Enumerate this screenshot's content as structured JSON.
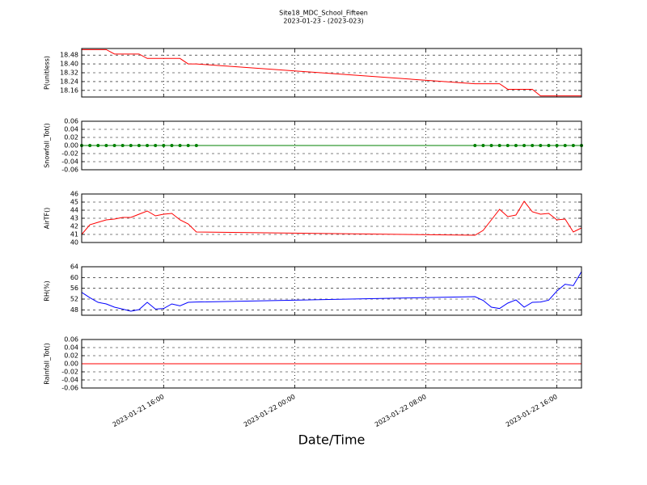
{
  "chart_data": [
    {
      "type": "line",
      "title": "Site18_MDC_School_Fifteen",
      "subtitle": "2023-01-23 - (2023-023)",
      "ylabel": "P(unitless)",
      "x": [
        "2023-01-21 11:00",
        "2023-01-21 11:30",
        "2023-01-21 12:00",
        "2023-01-21 12:30",
        "2023-01-21 13:00",
        "2023-01-21 13:30",
        "2023-01-21 14:00",
        "2023-01-21 14:30",
        "2023-01-21 15:00",
        "2023-01-21 15:30",
        "2023-01-21 16:00",
        "2023-01-21 16:30",
        "2023-01-21 17:00",
        "2023-01-21 17:30",
        "2023-01-21 18:00",
        "2023-01-22 11:00",
        "2023-01-22 11:30",
        "2023-01-22 12:00",
        "2023-01-22 12:30",
        "2023-01-22 13:00",
        "2023-01-22 13:30",
        "2023-01-22 14:00",
        "2023-01-22 14:30",
        "2023-01-22 15:00",
        "2023-01-22 15:30",
        "2023-01-22 16:00",
        "2023-01-22 16:30",
        "2023-01-22 17:00",
        "2023-01-22 17:30"
      ],
      "values": [
        18.53,
        18.53,
        18.53,
        18.53,
        18.49,
        18.49,
        18.49,
        18.49,
        18.45,
        18.45,
        18.45,
        18.45,
        18.45,
        18.4,
        18.4,
        18.22,
        18.22,
        18.22,
        18.22,
        18.17,
        18.17,
        18.17,
        18.17,
        18.11,
        18.11,
        18.11,
        18.11,
        18.11,
        18.11
      ],
      "color": "#ff0000",
      "markers": false,
      "xlim": [
        "2023-01-21 11:00",
        "2023-01-22 17:30"
      ],
      "ylim": [
        18.1,
        18.54
      ],
      "yticks": [
        18.16,
        18.24,
        18.32,
        {
          "value": 18.4,
          "label": "18.40"
        },
        18.48
      ],
      "grid": true
    },
    {
      "type": "line",
      "ylabel": "Snowfall_Tot()",
      "x": [
        "2023-01-21 11:00",
        "2023-01-21 11:30",
        "2023-01-21 12:00",
        "2023-01-21 12:30",
        "2023-01-21 13:00",
        "2023-01-21 13:30",
        "2023-01-21 14:00",
        "2023-01-21 14:30",
        "2023-01-21 15:00",
        "2023-01-21 15:30",
        "2023-01-21 16:00",
        "2023-01-21 16:30",
        "2023-01-21 17:00",
        "2023-01-21 17:30",
        "2023-01-21 18:00",
        "2023-01-22 11:00",
        "2023-01-22 11:30",
        "2023-01-22 12:00",
        "2023-01-22 12:30",
        "2023-01-22 13:00",
        "2023-01-22 13:30",
        "2023-01-22 14:00",
        "2023-01-22 14:30",
        "2023-01-22 15:00",
        "2023-01-22 15:30",
        "2023-01-22 16:00",
        "2023-01-22 16:30",
        "2023-01-22 17:00",
        "2023-01-22 17:30"
      ],
      "values": [
        0,
        0,
        0,
        0,
        0,
        0,
        0,
        0,
        0,
        0,
        0,
        0,
        0,
        0,
        0,
        0,
        0,
        0,
        0,
        0,
        0,
        0,
        0,
        0,
        0,
        0,
        0,
        0,
        0
      ],
      "color": "#008000",
      "markers": true,
      "xlim": [
        "2023-01-21 11:00",
        "2023-01-22 17:30"
      ],
      "ylim": [
        -0.06,
        0.06
      ],
      "yticks": [
        -0.06,
        -0.04,
        -0.02,
        {
          "value": 0,
          "label": "0.00"
        },
        0.02,
        0.04,
        0.06
      ],
      "grid": true
    },
    {
      "type": "line",
      "ylabel": "AirTF()",
      "x": [
        "2023-01-21 11:00",
        "2023-01-21 11:30",
        "2023-01-21 12:00",
        "2023-01-21 12:30",
        "2023-01-21 13:00",
        "2023-01-21 13:30",
        "2023-01-21 14:00",
        "2023-01-21 14:30",
        "2023-01-21 15:00",
        "2023-01-21 15:30",
        "2023-01-21 16:00",
        "2023-01-21 16:30",
        "2023-01-21 17:00",
        "2023-01-21 17:30",
        "2023-01-21 18:00",
        "2023-01-22 11:00",
        "2023-01-22 11:30",
        "2023-01-22 12:00",
        "2023-01-22 12:30",
        "2023-01-22 13:00",
        "2023-01-22 13:30",
        "2023-01-22 14:00",
        "2023-01-22 14:30",
        "2023-01-22 15:00",
        "2023-01-22 15:30",
        "2023-01-22 16:00",
        "2023-01-22 16:30",
        "2023-01-22 17:00",
        "2023-01-22 17:30"
      ],
      "values": [
        41.0,
        42.2,
        42.5,
        42.8,
        42.9,
        43.1,
        43.1,
        43.5,
        43.9,
        43.3,
        43.5,
        43.6,
        42.8,
        42.3,
        41.3,
        40.9,
        41.5,
        42.8,
        44.1,
        43.2,
        43.4,
        45.1,
        43.8,
        43.5,
        43.6,
        42.8,
        42.9,
        41.3,
        41.8
      ],
      "color": "#ff0000",
      "markers": false,
      "xlim": [
        "2023-01-21 11:00",
        "2023-01-22 17:30"
      ],
      "ylim": [
        40,
        46
      ],
      "yticks": [
        40,
        41,
        42,
        43,
        44,
        45,
        46
      ],
      "grid": true
    },
    {
      "type": "line",
      "ylabel": "RH(%)",
      "x": [
        "2023-01-21 11:00",
        "2023-01-21 11:30",
        "2023-01-21 12:00",
        "2023-01-21 12:30",
        "2023-01-21 13:00",
        "2023-01-21 13:30",
        "2023-01-21 14:00",
        "2023-01-21 14:30",
        "2023-01-21 15:00",
        "2023-01-21 15:30",
        "2023-01-21 16:00",
        "2023-01-21 16:30",
        "2023-01-21 17:00",
        "2023-01-21 17:30",
        "2023-01-21 18:00",
        "2023-01-22 11:00",
        "2023-01-22 11:30",
        "2023-01-22 12:00",
        "2023-01-22 12:30",
        "2023-01-22 13:00",
        "2023-01-22 13:30",
        "2023-01-22 14:00",
        "2023-01-22 14:30",
        "2023-01-22 15:00",
        "2023-01-22 15:30",
        "2023-01-22 16:00",
        "2023-01-22 16:30",
        "2023-01-22 17:00",
        "2023-01-22 17:30"
      ],
      "values": [
        54.5,
        52.5,
        50.8,
        50.2,
        49.0,
        48.3,
        47.5,
        48.1,
        50.8,
        48.3,
        48.5,
        50.2,
        49.5,
        50.8,
        50.9,
        52.9,
        51.5,
        49.0,
        48.5,
        50.5,
        51.7,
        49.0,
        50.8,
        50.9,
        51.6,
        55.0,
        57.5,
        57.0,
        62.2
      ],
      "color": "#0000ff",
      "markers": false,
      "xlim": [
        "2023-01-21 11:00",
        "2023-01-22 17:30"
      ],
      "ylim": [
        46,
        64
      ],
      "yticks": [
        48,
        52,
        56,
        60,
        64
      ],
      "grid": true
    },
    {
      "type": "line",
      "ylabel": "Rainfall_Tot()",
      "xlabel": "Date/Time",
      "x": [
        "2023-01-21 11:00",
        "2023-01-21 11:30",
        "2023-01-21 12:00",
        "2023-01-21 12:30",
        "2023-01-21 13:00",
        "2023-01-21 13:30",
        "2023-01-21 14:00",
        "2023-01-21 14:30",
        "2023-01-21 15:00",
        "2023-01-21 15:30",
        "2023-01-21 16:00",
        "2023-01-21 16:30",
        "2023-01-21 17:00",
        "2023-01-21 17:30",
        "2023-01-21 18:00",
        "2023-01-22 11:00",
        "2023-01-22 11:30",
        "2023-01-22 12:00",
        "2023-01-22 12:30",
        "2023-01-22 13:00",
        "2023-01-22 13:30",
        "2023-01-22 14:00",
        "2023-01-22 14:30",
        "2023-01-22 15:00",
        "2023-01-22 15:30",
        "2023-01-22 16:00",
        "2023-01-22 16:30",
        "2023-01-22 17:00",
        "2023-01-22 17:30"
      ],
      "values": [
        0,
        0,
        0,
        0,
        0,
        0,
        0,
        0,
        0,
        0,
        0,
        0,
        0,
        0,
        0,
        0,
        0,
        0,
        0,
        0,
        0,
        0,
        0,
        0,
        0,
        0,
        0,
        0,
        0
      ],
      "color": "#ff0000",
      "markers": false,
      "xlim": [
        "2023-01-21 11:00",
        "2023-01-22 17:30"
      ],
      "xticks": [
        "2023-01-21 16:00",
        "2023-01-22 00:00",
        "2023-01-22 08:00",
        "2023-01-22 16:00"
      ],
      "ylim": [
        -0.06,
        0.06
      ],
      "yticks": [
        -0.06,
        -0.04,
        -0.02,
        {
          "value": 0,
          "label": "0.00"
        },
        0.02,
        0.04,
        0.06
      ],
      "grid": true
    }
  ]
}
